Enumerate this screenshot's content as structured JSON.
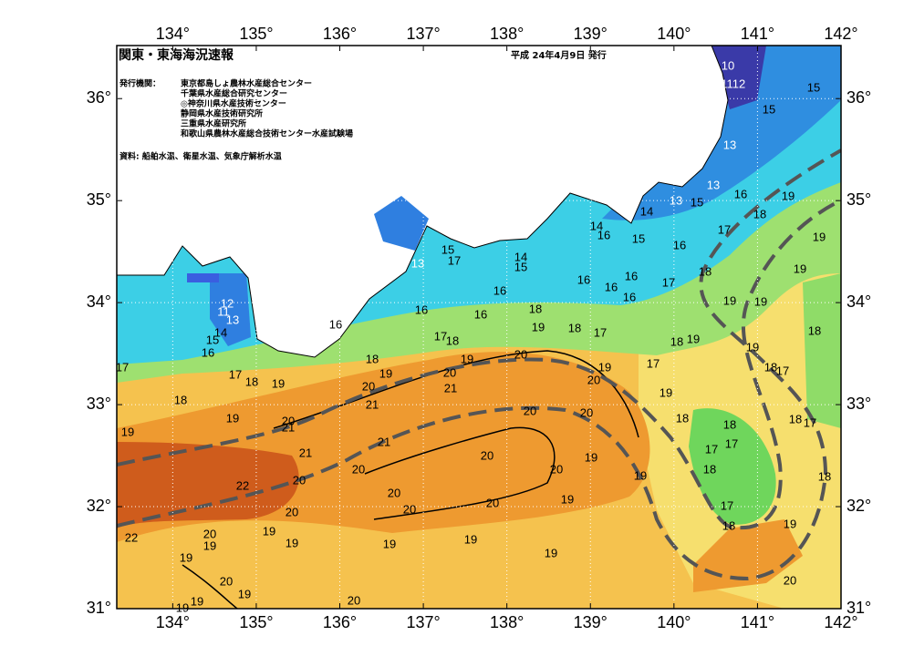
{
  "map": {
    "title": "関東・東海海況速報",
    "date": "平成 24年4月9日 発行",
    "publisher_label": "発行機関：",
    "publishers": [
      "東京都島しょ農林水産総合センター",
      "千葉県水産総合研究センター",
      "◎神奈川県水産技術センター",
      "静岡県水産技術研究所",
      "三重県水産研究所",
      "和歌山県農林水産総合技術センター水産試験場"
    ],
    "source": "資料: 船舶水温、衛星水温、気象庁解析水温",
    "xlim": [
      133.33,
      142
    ],
    "ylim": [
      31,
      36.52
    ],
    "xticks": [
      {
        "value": 134,
        "label": "134°"
      },
      {
        "value": 135,
        "label": "135°"
      },
      {
        "value": 136,
        "label": "136°"
      },
      {
        "value": 137,
        "label": "137°"
      },
      {
        "value": 138,
        "label": "138°"
      },
      {
        "value": 139,
        "label": "139°"
      },
      {
        "value": 140,
        "label": "140°"
      },
      {
        "value": 141,
        "label": "141°"
      },
      {
        "value": 142,
        "label": "142°"
      }
    ],
    "yticks": [
      {
        "value": 31,
        "label": "31°"
      },
      {
        "value": 32,
        "label": "32°"
      },
      {
        "value": 33,
        "label": "33°"
      },
      {
        "value": 34,
        "label": "34°"
      },
      {
        "value": 35,
        "label": "35°"
      },
      {
        "value": 36,
        "label": "36°"
      }
    ],
    "contour_labels": [
      10,
      11,
      12,
      15,
      15,
      13,
      13,
      16,
      19,
      13,
      15,
      14,
      18,
      14,
      16,
      15,
      16,
      17,
      19,
      15,
      17,
      13,
      14,
      15,
      19,
      18,
      16,
      16,
      17,
      16,
      16,
      16,
      19,
      19,
      12,
      11,
      13,
      18,
      16,
      16,
      16,
      14,
      19,
      18,
      17,
      18,
      15,
      17,
      18,
      18,
      19,
      16,
      19,
      20,
      18,
      19,
      17,
      18,
      17,
      17,
      18,
      19,
      19,
      20,
      19,
      17,
      20,
      21,
      20,
      19,
      18,
      21,
      19,
      19,
      20,
      20,
      18,
      18,
      18,
      17,
      20,
      21,
      17,
      17,
      21,
      21,
      20,
      19,
      20,
      20,
      18,
      20,
      22,
      19,
      18,
      20,
      19,
      20,
      17,
      18,
      20,
      20,
      19,
      22,
      20,
      19,
      19,
      19,
      19,
      19,
      19,
      19,
      20,
      19,
      20,
      19,
      20,
      19
    ]
  }
}
